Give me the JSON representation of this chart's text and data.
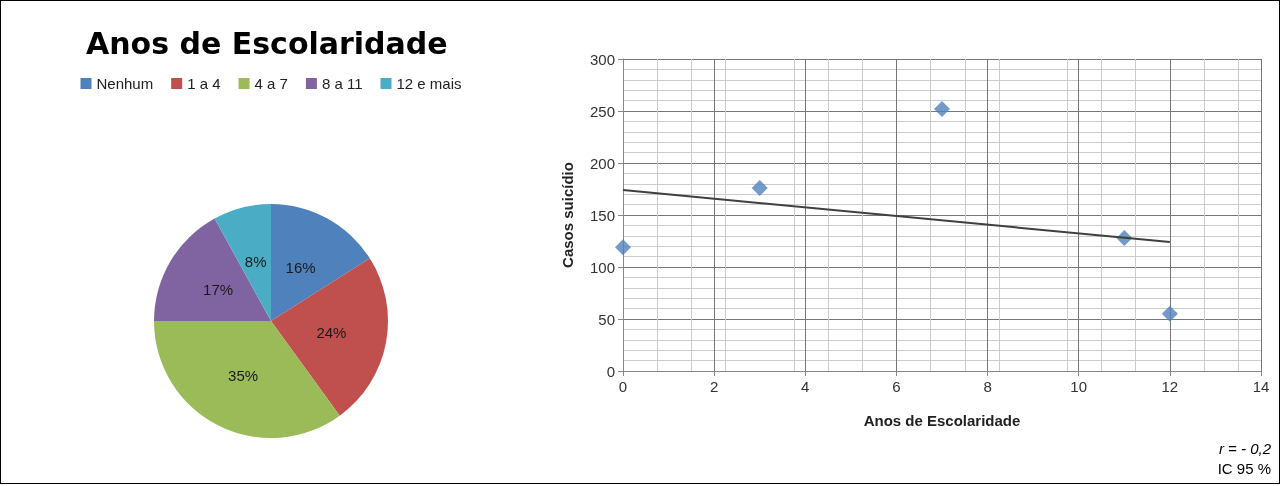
{
  "chart_data": [
    {
      "type": "pie",
      "title": "Anos de Escolaridade",
      "categories": [
        "Nenhum",
        "1 a 4",
        "4 a 7",
        "8 a 11",
        "12 e mais"
      ],
      "values": [
        16,
        24,
        35,
        17,
        8
      ],
      "value_labels": [
        "16%",
        "24%",
        "35%",
        "17%",
        "8%"
      ],
      "colors": [
        "#4f81bd",
        "#c0504d",
        "#9bbb59",
        "#8064a2",
        "#4bacc6"
      ],
      "legend": "top"
    },
    {
      "type": "scatter",
      "xlabel": "Anos de Escolaridade",
      "ylabel": "Casos suicídio",
      "xlim": [
        0,
        14
      ],
      "xticks": [
        0,
        2,
        4,
        6,
        8,
        10,
        12,
        14
      ],
      "ylim": [
        0,
        300
      ],
      "yticks": [
        0,
        50,
        100,
        150,
        200,
        250,
        300
      ],
      "grid": true,
      "marker": "diamond",
      "annotations": [
        "r = - 0,2",
        "IC 95 %"
      ],
      "series": [
        {
          "type": "scatter",
          "color": "#4f81bd",
          "x": [
            0,
            3,
            7,
            11,
            12
          ],
          "values": [
            119,
            176,
            252,
            128,
            55
          ]
        },
        {
          "type": "line",
          "color": "#404040",
          "x": [
            0,
            12
          ],
          "values": [
            174,
            124
          ],
          "marker": "none"
        }
      ]
    }
  ]
}
